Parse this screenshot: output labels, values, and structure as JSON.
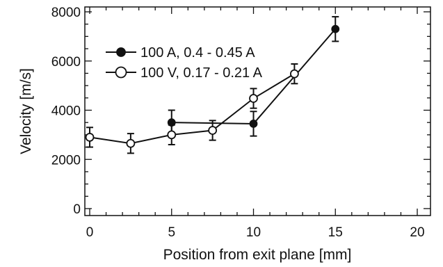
{
  "chart_data": {
    "type": "scatter",
    "title": "",
    "xlabel": "Position from exit plane [mm]",
    "ylabel": "Velocity [m/s]",
    "xlim": [
      0,
      20
    ],
    "ylim": [
      0,
      8000
    ],
    "xticks": [
      0,
      5,
      10,
      15,
      20
    ],
    "yticks": [
      0,
      2000,
      4000,
      6000,
      8000
    ],
    "grid": false,
    "legend_position": "top-left",
    "series": [
      {
        "name": "100 A, 0.4 - 0.45 A",
        "marker": "filled-circle",
        "x": [
          5,
          10,
          15
        ],
        "y": [
          3500,
          3450,
          7300
        ],
        "err": [
          500,
          500,
          500
        ]
      },
      {
        "name": "100 V, 0.17 - 0.21 A",
        "marker": "open-circle",
        "x": [
          0,
          2.5,
          5,
          7.5,
          10,
          12.5
        ],
        "y": [
          2900,
          2650,
          3000,
          3180,
          4480,
          5480
        ],
        "err": [
          400,
          400,
          400,
          400,
          400,
          400
        ]
      }
    ]
  }
}
